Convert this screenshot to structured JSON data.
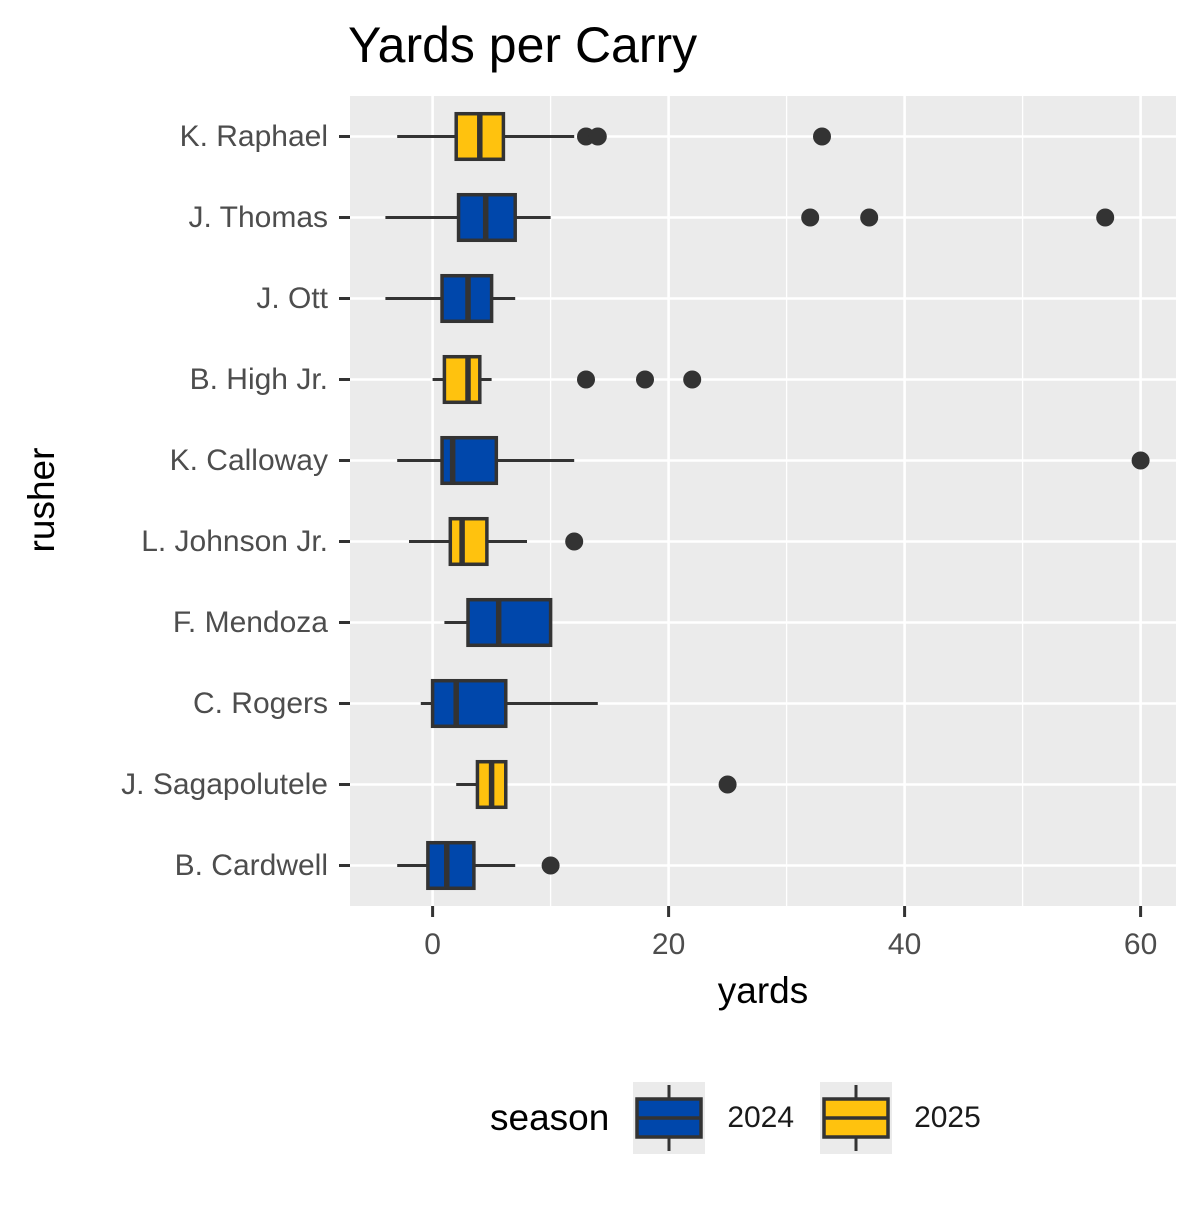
{
  "chart_data": {
    "type": "boxplot",
    "title": "Yards per Carry",
    "xlabel": "yards",
    "ylabel": "rusher",
    "xlim": [
      -7,
      63
    ],
    "x_ticks": [
      0,
      20,
      40,
      60
    ],
    "x_tick_labels": [
      "0",
      "20",
      "40",
      "60"
    ],
    "grid": true,
    "legend": {
      "title": "season",
      "position": "bottom",
      "entries": [
        {
          "label": "2024",
          "color": "#0047AB"
        },
        {
          "label": "2025",
          "color": "#FFC20E"
        }
      ]
    },
    "rushers": [
      {
        "name": "K. Raphael",
        "season": "2025",
        "whisker_low": -3,
        "q1": 2,
        "median": 4,
        "q3": 6,
        "whisker_high": 12,
        "outliers": [
          13,
          14,
          33
        ]
      },
      {
        "name": "J. Thomas",
        "season": "2024",
        "whisker_low": -4,
        "q1": 2.2,
        "median": 4.5,
        "q3": 7,
        "whisker_high": 10,
        "outliers": [
          32,
          37,
          57
        ]
      },
      {
        "name": "J. Ott",
        "season": "2024",
        "whisker_low": -4,
        "q1": 0.8,
        "median": 3,
        "q3": 5,
        "whisker_high": 7,
        "outliers": []
      },
      {
        "name": "B. High Jr.",
        "season": "2025",
        "whisker_low": 0,
        "q1": 1,
        "median": 3,
        "q3": 4,
        "whisker_high": 5,
        "outliers": [
          13,
          18,
          22
        ]
      },
      {
        "name": "K. Calloway",
        "season": "2024",
        "whisker_low": -3,
        "q1": 0.8,
        "median": 1.7,
        "q3": 5.4,
        "whisker_high": 12,
        "outliers": [
          60
        ]
      },
      {
        "name": "L. Johnson Jr.",
        "season": "2025",
        "whisker_low": -2,
        "q1": 1.5,
        "median": 2.5,
        "q3": 4.6,
        "whisker_high": 8,
        "outliers": [
          12
        ]
      },
      {
        "name": "F. Mendoza",
        "season": "2024",
        "whisker_low": 1,
        "q1": 3,
        "median": 5.6,
        "q3": 10,
        "whisker_high": 10,
        "outliers": []
      },
      {
        "name": "C. Rogers",
        "season": "2024",
        "whisker_low": -1,
        "q1": 0,
        "median": 2,
        "q3": 6.2,
        "whisker_high": 14,
        "outliers": []
      },
      {
        "name": "J. Sagapolutele",
        "season": "2025",
        "whisker_low": 2,
        "q1": 3.8,
        "median": 5,
        "q3": 6.2,
        "whisker_high": 6.2,
        "outliers": [
          25
        ]
      },
      {
        "name": "B. Cardwell",
        "season": "2024",
        "whisker_low": -3,
        "q1": -0.4,
        "median": 1.2,
        "q3": 3.5,
        "whisker_high": 7,
        "outliers": [
          10
        ]
      }
    ]
  }
}
